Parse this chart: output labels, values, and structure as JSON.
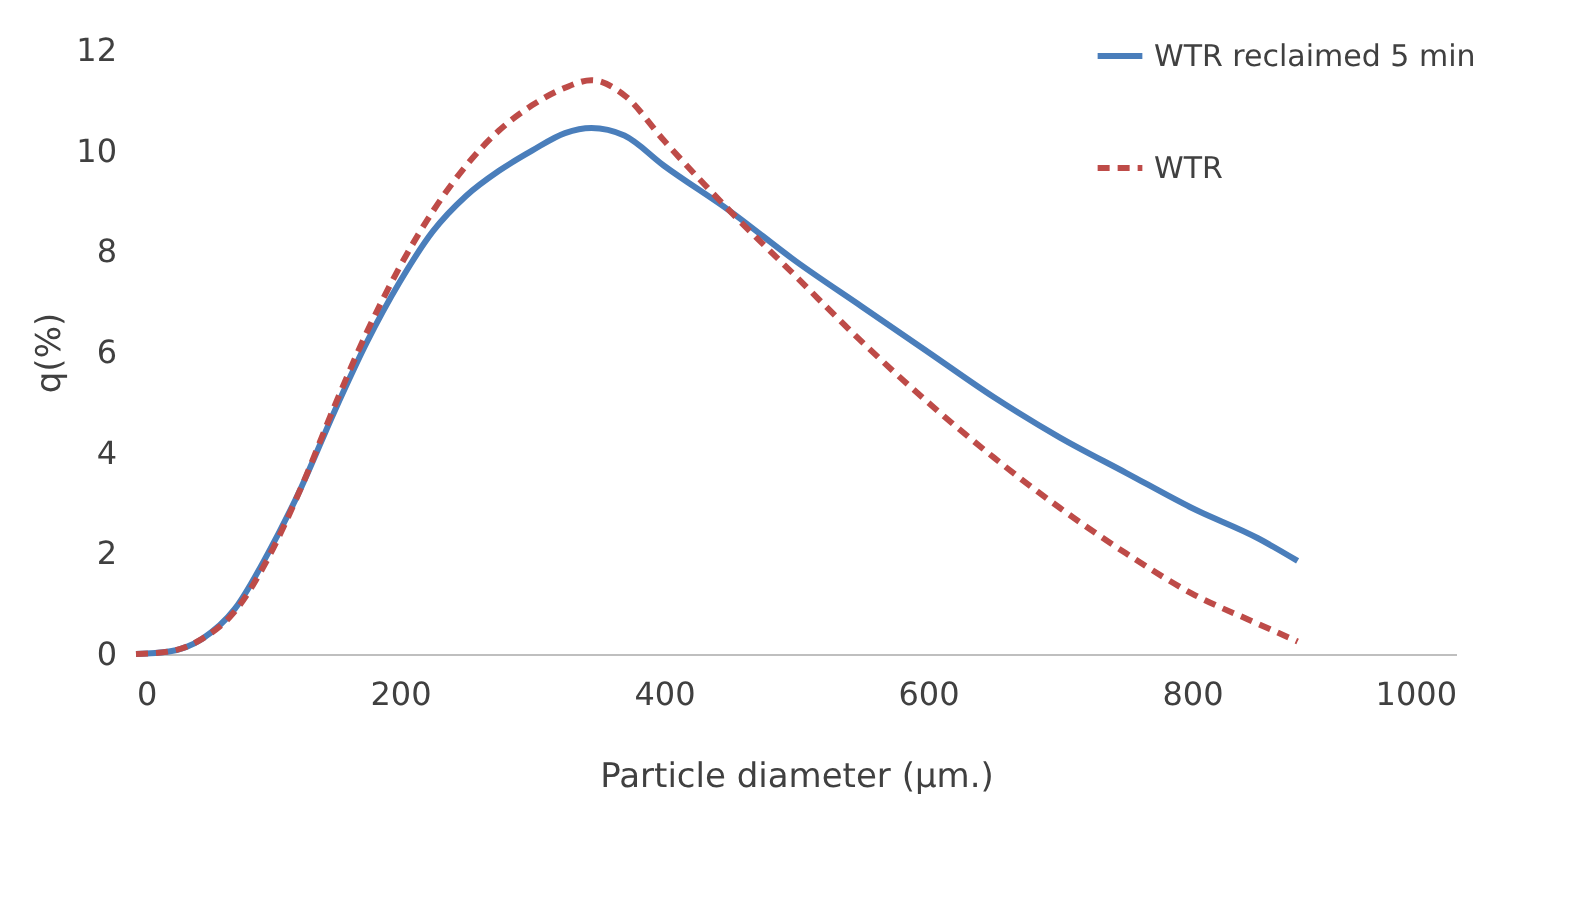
{
  "chart_data": {
    "type": "line",
    "xlabel": "Particle diameter (µm.)",
    "ylabel": "q(%)",
    "xlim": [
      0,
      1000
    ],
    "xticks": [
      0,
      200,
      400,
      600,
      800,
      1000
    ],
    "ylim": [
      0,
      12
    ],
    "yticks": [
      0,
      2,
      4,
      6,
      8,
      10,
      12
    ],
    "grid": false,
    "legend": "top right",
    "marker": "none",
    "series": [
      {
        "name": "WTR reclaimed 5 min",
        "color": "#4a7ebb",
        "line_style": "solid",
        "x": [
          0,
          25,
          50,
          75,
          100,
          125,
          150,
          175,
          200,
          225,
          250,
          275,
          300,
          325,
          345,
          370,
          400,
          450,
          500,
          550,
          600,
          650,
          700,
          750,
          800,
          850,
          880
        ],
        "values": [
          0,
          0.05,
          0.3,
          0.9,
          2,
          3.3,
          4.8,
          6.2,
          7.4,
          8.4,
          9.1,
          9.6,
          10.0,
          10.35,
          10.45,
          10.3,
          9.7,
          8.8,
          7.8,
          6.9,
          6.0,
          5.1,
          4.3,
          3.6,
          2.9,
          2.3,
          1.85
        ]
      },
      {
        "name": "WTR",
        "color": "#be4b48",
        "line_style": "dashed",
        "x": [
          0,
          25,
          50,
          75,
          100,
          125,
          150,
          175,
          200,
          225,
          250,
          275,
          300,
          325,
          345,
          370,
          400,
          450,
          500,
          550,
          600,
          650,
          700,
          750,
          800,
          850,
          880
        ],
        "values": [
          0,
          0.05,
          0.3,
          0.85,
          1.9,
          3.3,
          4.9,
          6.4,
          7.7,
          8.8,
          9.7,
          10.4,
          10.9,
          11.25,
          11.4,
          11.1,
          10.2,
          8.8,
          7.5,
          6.2,
          5.0,
          3.9,
          2.9,
          2.0,
          1.2,
          0.6,
          0.25
        ]
      }
    ]
  }
}
